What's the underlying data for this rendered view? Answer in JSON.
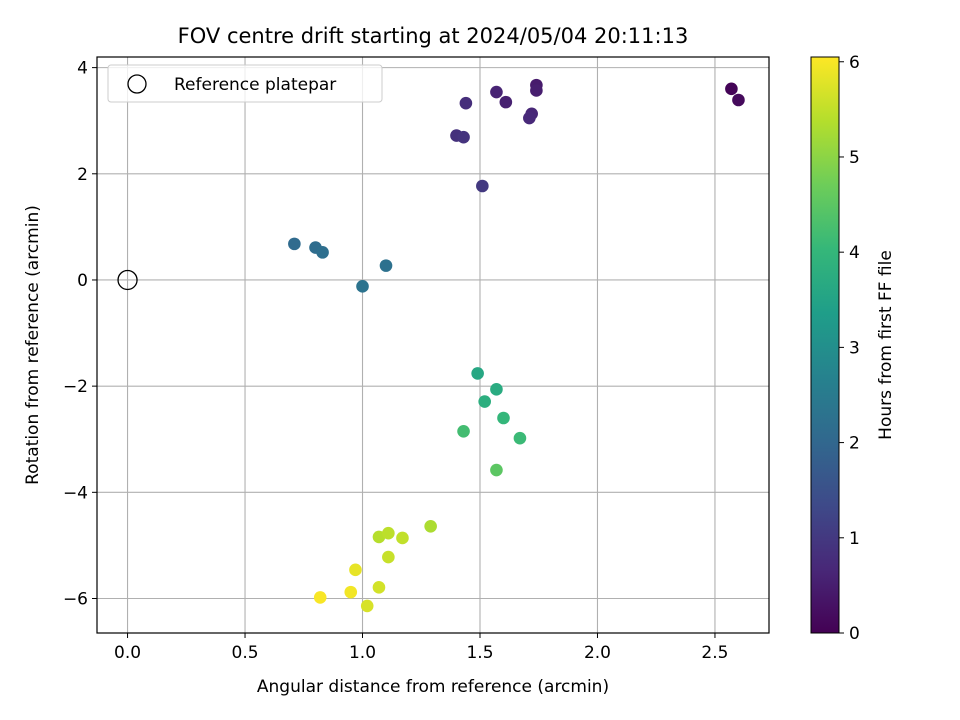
{
  "chart_data": {
    "type": "scatter",
    "title": "FOV centre drift starting at 2024/05/04 20:11:13",
    "xlabel": "Angular distance from reference (arcmin)",
    "ylabel": "Rotation from reference (arcmin)",
    "xlim": [
      -0.13,
      2.73
    ],
    "ylim": [
      -6.65,
      4.2
    ],
    "xticks": [
      "0.0",
      "0.5",
      "1.0",
      "1.5",
      "2.0",
      "2.5"
    ],
    "xtick_values": [
      0,
      0.5,
      1.0,
      1.5,
      2.0,
      2.5
    ],
    "yticks": [
      "−6",
      "−4",
      "−2",
      "0",
      "2",
      "4"
    ],
    "ytick_values": [
      -6,
      -4,
      -2,
      0,
      2,
      4
    ],
    "grid": true,
    "legend": {
      "placement": "top-left",
      "entries": [
        "Reference platepar"
      ]
    },
    "reference_point": {
      "x": 0,
      "y": 0
    },
    "colorbar": {
      "label": "Hours from first FF file",
      "range": [
        0,
        6.05
      ],
      "ticks": [
        "0",
        "1",
        "2",
        "3",
        "4",
        "5",
        "6"
      ],
      "tick_values": [
        0,
        1,
        2,
        3,
        4,
        5,
        6
      ],
      "colormap": "viridis"
    },
    "points": [
      {
        "x": 2.57,
        "y": 3.6,
        "h": 0.05
      },
      {
        "x": 2.6,
        "y": 3.39,
        "h": 0.15
      },
      {
        "x": 1.74,
        "y": 3.67,
        "h": 0.45
      },
      {
        "x": 1.74,
        "y": 3.57,
        "h": 0.5
      },
      {
        "x": 1.57,
        "y": 3.54,
        "h": 0.6
      },
      {
        "x": 1.61,
        "y": 3.35,
        "h": 0.55
      },
      {
        "x": 1.72,
        "y": 3.13,
        "h": 0.65
      },
      {
        "x": 1.71,
        "y": 3.05,
        "h": 0.7
      },
      {
        "x": 1.44,
        "y": 3.33,
        "h": 0.8
      },
      {
        "x": 1.4,
        "y": 2.72,
        "h": 0.85
      },
      {
        "x": 1.43,
        "y": 2.69,
        "h": 0.9
      },
      {
        "x": 1.51,
        "y": 1.77,
        "h": 1.0
      },
      {
        "x": 0.71,
        "y": 0.68,
        "h": 2.1
      },
      {
        "x": 0.8,
        "y": 0.61,
        "h": 2.15
      },
      {
        "x": 0.83,
        "y": 0.52,
        "h": 2.2
      },
      {
        "x": 1.1,
        "y": 0.27,
        "h": 2.25
      },
      {
        "x": 1.0,
        "y": -0.12,
        "h": 2.3
      },
      {
        "x": 1.49,
        "y": -1.76,
        "h": 3.6
      },
      {
        "x": 1.57,
        "y": -2.06,
        "h": 3.7
      },
      {
        "x": 1.52,
        "y": -2.29,
        "h": 3.8
      },
      {
        "x": 1.6,
        "y": -2.6,
        "h": 4.0
      },
      {
        "x": 1.43,
        "y": -2.85,
        "h": 4.2
      },
      {
        "x": 1.67,
        "y": -2.98,
        "h": 4.1
      },
      {
        "x": 1.57,
        "y": -3.58,
        "h": 4.5
      },
      {
        "x": 1.29,
        "y": -4.64,
        "h": 5.3
      },
      {
        "x": 1.07,
        "y": -4.84,
        "h": 5.4
      },
      {
        "x": 1.11,
        "y": -4.77,
        "h": 5.45
      },
      {
        "x": 1.17,
        "y": -4.86,
        "h": 5.5
      },
      {
        "x": 1.11,
        "y": -5.22,
        "h": 5.55
      },
      {
        "x": 0.97,
        "y": -5.46,
        "h": 5.85
      },
      {
        "x": 1.07,
        "y": -5.79,
        "h": 5.65
      },
      {
        "x": 0.95,
        "y": -5.88,
        "h": 5.95
      },
      {
        "x": 0.82,
        "y": -5.98,
        "h": 6.0
      },
      {
        "x": 1.02,
        "y": -6.14,
        "h": 5.7
      }
    ]
  }
}
